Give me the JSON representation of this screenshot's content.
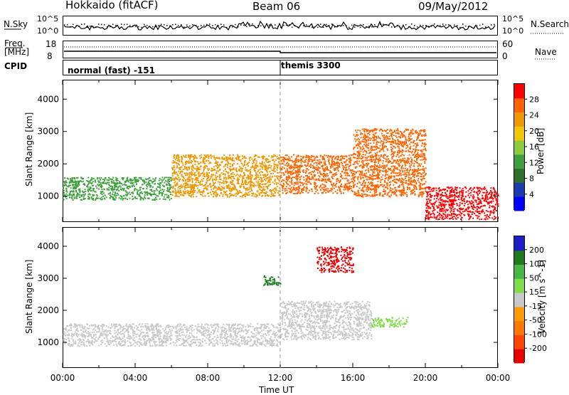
{
  "header": {
    "station": "Hokkaido (fitACF)",
    "beam": "Beam 06",
    "date": "09/May/2012"
  },
  "top_panels": {
    "nsky_label": "N.Sky",
    "nsky_ticks": [
      "10^5",
      "10^0"
    ],
    "nsearch_label": "N.Search",
    "freq_label_line1": "Freq.",
    "freq_label_line2": "[MHz]",
    "freq_ticks": [
      "18",
      "8"
    ],
    "nave_ticks": [
      "60",
      "0"
    ],
    "nave_label": "Nave",
    "cpid_label": "CPID",
    "cpid_segments": [
      {
        "label": "normal (fast) -151",
        "start_hour": 0
      },
      {
        "label": "themis 3300",
        "start_hour": 12
      }
    ]
  },
  "colors": {
    "power": [
      "#0000ff",
      "#1a3cb0",
      "#2e6e2e",
      "#3ca03c",
      "#8ccc3c",
      "#f0c800",
      "#f09600",
      "#ff6400",
      "#ff0000"
    ],
    "velocity": [
      "#1e1ec8",
      "#1f7a1f",
      "#46b846",
      "#7fdc46",
      "#c8c8c8",
      "#ff9b00",
      "#ff7800",
      "#ff4600",
      "#e60000"
    ],
    "ground_scatter_gray": "#bebebe"
  },
  "chart_data": [
    {
      "type": "heatmap",
      "title": "Power",
      "xlabel": "Time UT",
      "ylabel": "Slant Range [km]",
      "xlim": [
        0,
        24
      ],
      "ylim": [
        200,
        4600
      ],
      "x_tick_labels": [
        "00:00",
        "04:00",
        "08:00",
        "12:00",
        "16:00",
        "20:00",
        "00:00"
      ],
      "y_tick_values": [
        1000,
        2000,
        3000,
        4000
      ],
      "colorbar_label": "Power [dB]",
      "colorbar_ticks": [
        "4",
        "8",
        "12",
        "16",
        "20",
        "24",
        "28"
      ],
      "colorbar_range": [
        0,
        30
      ],
      "scatter_bands": [
        {
          "hours": [
            0,
            6
          ],
          "range_km": [
            900,
            1600
          ],
          "power_db": 10
        },
        {
          "hours": [
            6,
            12
          ],
          "range_km": [
            1000,
            2300
          ],
          "power_db": 20
        },
        {
          "hours": [
            12,
            16
          ],
          "range_km": [
            1100,
            2300
          ],
          "power_db": 26
        },
        {
          "hours": [
            16,
            20
          ],
          "range_km": [
            1000,
            3100
          ],
          "power_db": 24
        },
        {
          "hours": [
            20,
            24
          ],
          "range_km": [
            300,
            1300
          ],
          "power_db": 28
        }
      ]
    },
    {
      "type": "heatmap",
      "title": "Velocity",
      "xlabel": "Time UT",
      "ylabel": "Slant Range [km]",
      "xlim": [
        0,
        24
      ],
      "ylim": [
        200,
        4600
      ],
      "x_tick_labels": [
        "00:00",
        "04:00",
        "08:00",
        "12:00",
        "16:00",
        "20:00",
        "00:00"
      ],
      "y_tick_values": [
        1000,
        2000,
        3000,
        4000
      ],
      "colorbar_label": "Velocity [m s^-1]",
      "colorbar_ticks": [
        "200",
        "100",
        "50",
        "15",
        "-15",
        "-50",
        "-100",
        "-200"
      ],
      "colorbar_range": [
        -250,
        250
      ],
      "scatter_bands": [
        {
          "hours": [
            0,
            12
          ],
          "range_km": [
            900,
            1600
          ],
          "velocity_ms": 0
        },
        {
          "hours": [
            12,
            17
          ],
          "range_km": [
            1100,
            2300
          ],
          "velocity_ms": 0
        },
        {
          "hours": [
            11,
            12
          ],
          "range_km": [
            2800,
            3100
          ],
          "velocity_ms": 150
        },
        {
          "hours": [
            14,
            16
          ],
          "range_km": [
            3200,
            4000
          ],
          "velocity_ms": -200
        },
        {
          "hours": [
            17,
            19
          ],
          "range_km": [
            1500,
            1800
          ],
          "velocity_ms": 40
        }
      ]
    }
  ]
}
